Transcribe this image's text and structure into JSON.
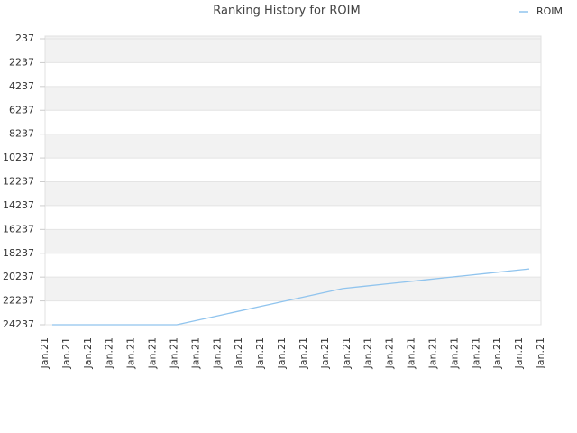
{
  "chart_data": {
    "type": "line",
    "title": "Ranking History for ROIM",
    "categories": [
      "Jan.21",
      "Jan.21",
      "Jan.21",
      "Jan.21",
      "Jan.21",
      "Jan.21",
      "Jan.21",
      "Jan.21",
      "Jan.21",
      "Jan.21",
      "Jan.21",
      "Jan.21",
      "Jan.21",
      "Jan.21",
      "Jan.21",
      "Jan.21",
      "Jan.21",
      "Jan.21",
      "Jan.21",
      "Jan.21",
      "Jan.21",
      "Jan.21",
      "Jan.21",
      "Jan.21"
    ],
    "series": [
      {
        "name": "ROIM",
        "color": "#90c4ee",
        "values": [
          24237,
          24237,
          24237,
          24237,
          24237,
          24237,
          24237,
          23857,
          23477,
          23097,
          22717,
          22337,
          21957,
          21577,
          21197,
          21014,
          20831,
          20648,
          20465,
          20282,
          20099,
          19916,
          19733,
          19550
        ]
      }
    ],
    "ylim": [
      24237,
      237
    ],
    "yticks": [
      237,
      2237,
      4237,
      6237,
      8237,
      10237,
      12237,
      14237,
      16237,
      18237,
      20237,
      22237,
      24237
    ],
    "grid": true,
    "legend": "top-right"
  }
}
